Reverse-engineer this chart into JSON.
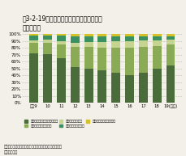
{
  "title_line1": "嘰3-2-19　ペットボトルの再生樹脂用途の",
  "title_line2": "構成比推移",
  "years": [
    "平戈9",
    "10",
    "11",
    "12",
    "13",
    "14",
    "15",
    "16",
    "17",
    "18",
    "19(年度)"
  ],
  "categories": [
    "繊維（衣料品、カーペット）",
    "シート（卵パック等）",
    "ボトル（洗剤等）",
    "成形品（植木鉢等）",
    "その他（結束バンド等）"
  ],
  "colors": [
    "#4a6b3a",
    "#8aaa56",
    "#c5d490",
    "#3a9060",
    "#d4c22a"
  ],
  "data": [
    [
      72,
      15,
      4,
      7,
      2
    ],
    [
      71,
      17,
      4,
      6,
      2
    ],
    [
      65,
      20,
      5,
      8,
      2
    ],
    [
      52,
      30,
      6,
      9,
      3
    ],
    [
      50,
      32,
      7,
      8,
      3
    ],
    [
      47,
      34,
      8,
      8,
      3
    ],
    [
      44,
      37,
      9,
      7,
      3
    ],
    [
      40,
      40,
      10,
      7,
      3
    ],
    [
      44,
      38,
      9,
      6,
      3
    ],
    [
      50,
      33,
      8,
      6,
      3
    ],
    [
      55,
      30,
      7,
      5,
      3
    ]
  ],
  "source": "資料：財団法人日本容器包装リサイクル協会資料より環\n　　境省作成",
  "background_color": "#f2f0e8",
  "grid_color": "#bbbbbb",
  "ylim": [
    0,
    100
  ],
  "yticks": [
    0,
    10,
    20,
    30,
    40,
    50,
    60,
    70,
    80,
    90,
    100
  ]
}
